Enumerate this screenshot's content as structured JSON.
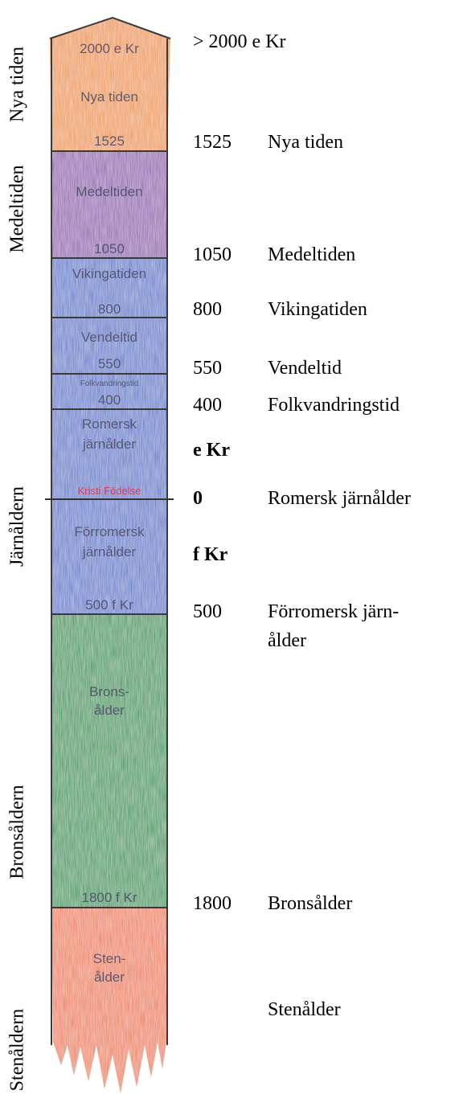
{
  "eras": {
    "nya": "Nya tiden",
    "medel": "Medeltiden",
    "jarn": "Järnåldern",
    "brons": "Bronsåldern",
    "sten": "Stenåldern"
  },
  "column": {
    "top": "2000 e Kr",
    "nya_name": "Nya tiden",
    "nya_year": "1525",
    "medel_name": "Medeltiden",
    "medel_year": "1050",
    "viking_name": "Vikingatiden",
    "viking_year": "800",
    "vendel_name": "Vendeltid",
    "vendel_year": "550",
    "folk_name": "Folkvandringstid",
    "folk_year": "400",
    "rom_name1": "Romersk",
    "rom_name2": "järnålder",
    "birth": "Kristi Födelse",
    "forrom_name1": "Förromersk",
    "forrom_name2": "järnålder",
    "forrom_year": "500 f Kr",
    "brons_name1": "Brons-",
    "brons_name2": "ålder",
    "brons_year": "1800 f Kr",
    "sten_name1": "Sten-",
    "sten_name2": "ålder"
  },
  "legend": {
    "top": "> 2000 e Kr",
    "nya_year": "1525",
    "nya_name": "Nya tiden",
    "medel_year": "1050",
    "medel_name": "Medeltiden",
    "viking_year": "800",
    "viking_name": "Vikingatiden",
    "vendel_year": "550",
    "vendel_name": "Vendeltid",
    "folk_year": "400",
    "folk_name": "Folkvandringstid",
    "ekr": "e Kr",
    "zero": "0",
    "rom_name": "Romersk järnålder",
    "fkr": "f Kr",
    "forrom_year": "500",
    "forrom_name1": "Förromersk järn-",
    "forrom_name2": "ålder",
    "brons_year": "1800",
    "brons_name": "Bronsålder",
    "sten_name": "Stenålder"
  },
  "colors": {
    "orange": "#f0a060",
    "purple": "#9b6fb8",
    "blue": "#6f86d0",
    "green": "#4fa06a",
    "stone": "#ef8a6a",
    "outline": "#3a3a3a",
    "birth_line": "#333333",
    "birth_text": "#d8324a"
  }
}
